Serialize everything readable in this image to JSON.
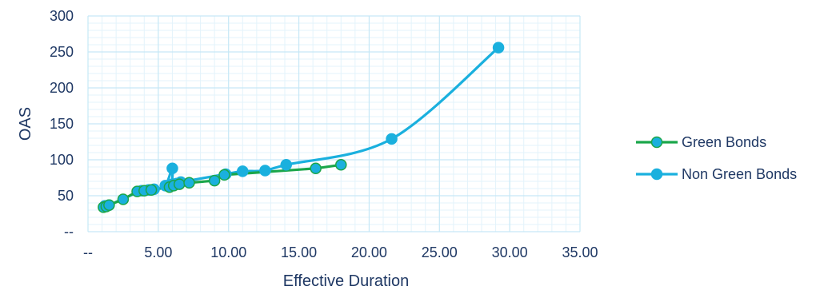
{
  "chart_data": {
    "type": "scatter",
    "xlabel": "Effective Duration",
    "ylabel": "OAS",
    "xlim": [
      0,
      35
    ],
    "ylim": [
      0,
      300
    ],
    "x_ticks": [
      0,
      5,
      10,
      15,
      20,
      25,
      30,
      35
    ],
    "x_tick_labels": [
      "--",
      "5.00",
      "10.00",
      "15.00",
      "20.00",
      "25.00",
      "30.00",
      "35.00"
    ],
    "y_ticks": [
      0,
      50,
      100,
      150,
      200,
      250,
      300
    ],
    "y_tick_labels": [
      "--",
      "50",
      "100",
      "150",
      "200",
      "250",
      "300"
    ],
    "grid": true,
    "legend_position": "right",
    "series": [
      {
        "name": "Green Bonds",
        "color": "#1aa64a",
        "marker_fill": "#1ab0de",
        "smooth": false,
        "x": [
          1.1,
          1.3,
          1.5,
          2.5,
          3.5,
          4.0,
          4.5,
          5.8,
          6.1,
          6.5,
          7.2,
          9.0,
          9.7,
          16.2,
          18.0
        ],
        "y": [
          34,
          35,
          37,
          45,
          56,
          57,
          58,
          62,
          64,
          66,
          68,
          71,
          79,
          88,
          93
        ]
      },
      {
        "name": "Non Green Bonds",
        "color": "#1ab0de",
        "marker_fill": "#1ab0de",
        "smooth": true,
        "x": [
          1.2,
          1.5,
          3.8,
          4.3,
          4.7,
          5.5,
          6.0,
          6.0,
          6.3,
          6.6,
          9.8,
          11.0,
          12.6,
          14.1,
          21.6,
          29.2
        ],
        "y": [
          36,
          37,
          57,
          58,
          59,
          64,
          88,
          66,
          67,
          69,
          80,
          84,
          85,
          93,
          129,
          256
        ]
      }
    ]
  }
}
